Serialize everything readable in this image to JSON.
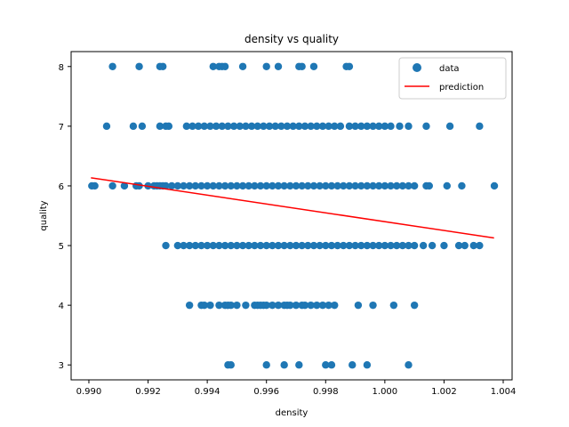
{
  "chart_data": {
    "type": "scatter",
    "title": "density vs quality",
    "xlabel": "density",
    "ylabel": "quality",
    "xlim": [
      0.9894,
      1.0043
    ],
    "ylim": [
      2.75,
      8.25
    ],
    "xticks": [
      "0.990",
      "0.992",
      "0.994",
      "0.996",
      "0.998",
      "1.000",
      "1.002",
      "1.004"
    ],
    "yticks": [
      "3",
      "4",
      "5",
      "6",
      "7",
      "8"
    ],
    "xtick_values": [
      0.99,
      0.992,
      0.994,
      0.996,
      0.998,
      1.0,
      1.002,
      1.004
    ],
    "ytick_values": [
      3,
      4,
      5,
      6,
      7,
      8
    ],
    "grid": false,
    "legend_position": "top-right",
    "colors": {
      "data": "#1f77b4",
      "prediction": "#ff0000"
    },
    "series": [
      {
        "name": "data",
        "kind": "scatter",
        "points": [
          [
            0.9908,
            8
          ],
          [
            0.9917,
            8
          ],
          [
            0.9924,
            8
          ],
          [
            0.9925,
            8
          ],
          [
            0.9942,
            8
          ],
          [
            0.9944,
            8
          ],
          [
            0.9945,
            8
          ],
          [
            0.9946,
            8
          ],
          [
            0.9952,
            8
          ],
          [
            0.996,
            8
          ],
          [
            0.9964,
            8
          ],
          [
            0.9971,
            8
          ],
          [
            0.9972,
            8
          ],
          [
            0.9976,
            8
          ],
          [
            0.9987,
            8
          ],
          [
            0.9988,
            8
          ],
          [
            0.9906,
            7
          ],
          [
            0.9915,
            7
          ],
          [
            0.9918,
            7
          ],
          [
            0.9924,
            7
          ],
          [
            0.9926,
            7
          ],
          [
            0.9927,
            7
          ],
          [
            0.9933,
            7
          ],
          [
            0.9935,
            7
          ],
          [
            0.9937,
            7
          ],
          [
            0.9939,
            7
          ],
          [
            0.9941,
            7
          ],
          [
            0.9943,
            7
          ],
          [
            0.9945,
            7
          ],
          [
            0.9947,
            7
          ],
          [
            0.9949,
            7
          ],
          [
            0.9951,
            7
          ],
          [
            0.9953,
            7
          ],
          [
            0.9955,
            7
          ],
          [
            0.9957,
            7
          ],
          [
            0.9959,
            7
          ],
          [
            0.9961,
            7
          ],
          [
            0.9963,
            7
          ],
          [
            0.9965,
            7
          ],
          [
            0.9967,
            7
          ],
          [
            0.9969,
            7
          ],
          [
            0.9971,
            7
          ],
          [
            0.9973,
            7
          ],
          [
            0.9975,
            7
          ],
          [
            0.9977,
            7
          ],
          [
            0.9979,
            7
          ],
          [
            0.9981,
            7
          ],
          [
            0.9983,
            7
          ],
          [
            0.9985,
            7
          ],
          [
            0.9988,
            7
          ],
          [
            0.999,
            7
          ],
          [
            0.9992,
            7
          ],
          [
            0.9994,
            7
          ],
          [
            0.9996,
            7
          ],
          [
            0.9998,
            7
          ],
          [
            1.0,
            7
          ],
          [
            1.0002,
            7
          ],
          [
            1.0005,
            7
          ],
          [
            1.0008,
            7
          ],
          [
            1.0014,
            7
          ],
          [
            1.0022,
            7
          ],
          [
            1.0032,
            7
          ],
          [
            0.9901,
            6
          ],
          [
            0.9902,
            6
          ],
          [
            0.9908,
            6
          ],
          [
            0.9912,
            6
          ],
          [
            0.9916,
            6
          ],
          [
            0.9917,
            6
          ],
          [
            0.992,
            6
          ],
          [
            0.9922,
            6
          ],
          [
            0.9923,
            6
          ],
          [
            0.9924,
            6
          ],
          [
            0.9925,
            6
          ],
          [
            0.9926,
            6
          ],
          [
            0.9928,
            6
          ],
          [
            0.993,
            6
          ],
          [
            0.9932,
            6
          ],
          [
            0.9934,
            6
          ],
          [
            0.9936,
            6
          ],
          [
            0.9938,
            6
          ],
          [
            0.994,
            6
          ],
          [
            0.9942,
            6
          ],
          [
            0.9944,
            6
          ],
          [
            0.9946,
            6
          ],
          [
            0.9948,
            6
          ],
          [
            0.995,
            6
          ],
          [
            0.9952,
            6
          ],
          [
            0.9954,
            6
          ],
          [
            0.9956,
            6
          ],
          [
            0.9958,
            6
          ],
          [
            0.996,
            6
          ],
          [
            0.9962,
            6
          ],
          [
            0.9964,
            6
          ],
          [
            0.9966,
            6
          ],
          [
            0.9968,
            6
          ],
          [
            0.997,
            6
          ],
          [
            0.9972,
            6
          ],
          [
            0.9974,
            6
          ],
          [
            0.9976,
            6
          ],
          [
            0.9978,
            6
          ],
          [
            0.998,
            6
          ],
          [
            0.9982,
            6
          ],
          [
            0.9984,
            6
          ],
          [
            0.9986,
            6
          ],
          [
            0.9988,
            6
          ],
          [
            0.999,
            6
          ],
          [
            0.9992,
            6
          ],
          [
            0.9994,
            6
          ],
          [
            0.9996,
            6
          ],
          [
            0.9998,
            6
          ],
          [
            1.0,
            6
          ],
          [
            1.0002,
            6
          ],
          [
            1.0004,
            6
          ],
          [
            1.0006,
            6
          ],
          [
            1.0008,
            6
          ],
          [
            1.001,
            6
          ],
          [
            1.0014,
            6
          ],
          [
            1.0015,
            6
          ],
          [
            1.0021,
            6
          ],
          [
            1.0026,
            6
          ],
          [
            1.0037,
            6
          ],
          [
            0.9926,
            5
          ],
          [
            0.993,
            5
          ],
          [
            0.9932,
            5
          ],
          [
            0.9934,
            5
          ],
          [
            0.9936,
            5
          ],
          [
            0.9938,
            5
          ],
          [
            0.994,
            5
          ],
          [
            0.9942,
            5
          ],
          [
            0.9944,
            5
          ],
          [
            0.9946,
            5
          ],
          [
            0.9948,
            5
          ],
          [
            0.995,
            5
          ],
          [
            0.9952,
            5
          ],
          [
            0.9954,
            5
          ],
          [
            0.9956,
            5
          ],
          [
            0.9958,
            5
          ],
          [
            0.996,
            5
          ],
          [
            0.9962,
            5
          ],
          [
            0.9964,
            5
          ],
          [
            0.9966,
            5
          ],
          [
            0.9968,
            5
          ],
          [
            0.997,
            5
          ],
          [
            0.9972,
            5
          ],
          [
            0.9974,
            5
          ],
          [
            0.9976,
            5
          ],
          [
            0.9978,
            5
          ],
          [
            0.998,
            5
          ],
          [
            0.9982,
            5
          ],
          [
            0.9984,
            5
          ],
          [
            0.9986,
            5
          ],
          [
            0.9988,
            5
          ],
          [
            0.999,
            5
          ],
          [
            0.9992,
            5
          ],
          [
            0.9994,
            5
          ],
          [
            0.9996,
            5
          ],
          [
            0.9998,
            5
          ],
          [
            1.0,
            5
          ],
          [
            1.0002,
            5
          ],
          [
            1.0004,
            5
          ],
          [
            1.0006,
            5
          ],
          [
            1.0008,
            5
          ],
          [
            1.001,
            5
          ],
          [
            1.0013,
            5
          ],
          [
            1.0016,
            5
          ],
          [
            1.002,
            5
          ],
          [
            1.0025,
            5
          ],
          [
            1.0027,
            5
          ],
          [
            1.003,
            5
          ],
          [
            1.0032,
            5
          ],
          [
            0.9934,
            4
          ],
          [
            0.9938,
            4
          ],
          [
            0.9939,
            4
          ],
          [
            0.9941,
            4
          ],
          [
            0.9944,
            4
          ],
          [
            0.9946,
            4
          ],
          [
            0.9947,
            4
          ],
          [
            0.9948,
            4
          ],
          [
            0.995,
            4
          ],
          [
            0.9953,
            4
          ],
          [
            0.9956,
            4
          ],
          [
            0.9957,
            4
          ],
          [
            0.9958,
            4
          ],
          [
            0.9959,
            4
          ],
          [
            0.996,
            4
          ],
          [
            0.9962,
            4
          ],
          [
            0.9964,
            4
          ],
          [
            0.9966,
            4
          ],
          [
            0.9967,
            4
          ],
          [
            0.9968,
            4
          ],
          [
            0.997,
            4
          ],
          [
            0.9972,
            4
          ],
          [
            0.9973,
            4
          ],
          [
            0.9975,
            4
          ],
          [
            0.9977,
            4
          ],
          [
            0.9979,
            4
          ],
          [
            0.9981,
            4
          ],
          [
            0.9983,
            4
          ],
          [
            0.9991,
            4
          ],
          [
            0.9996,
            4
          ],
          [
            1.0003,
            4
          ],
          [
            1.001,
            4
          ],
          [
            0.9947,
            3
          ],
          [
            0.9948,
            3
          ],
          [
            0.996,
            3
          ],
          [
            0.9966,
            3
          ],
          [
            0.9971,
            3
          ],
          [
            0.998,
            3
          ],
          [
            0.9982,
            3
          ],
          [
            0.9989,
            3
          ],
          [
            0.9994,
            3
          ],
          [
            1.0008,
            3
          ]
        ]
      },
      {
        "name": "prediction",
        "kind": "line",
        "points": [
          [
            0.99007,
            6.136
          ],
          [
            1.00369,
            5.127
          ]
        ]
      }
    ]
  }
}
